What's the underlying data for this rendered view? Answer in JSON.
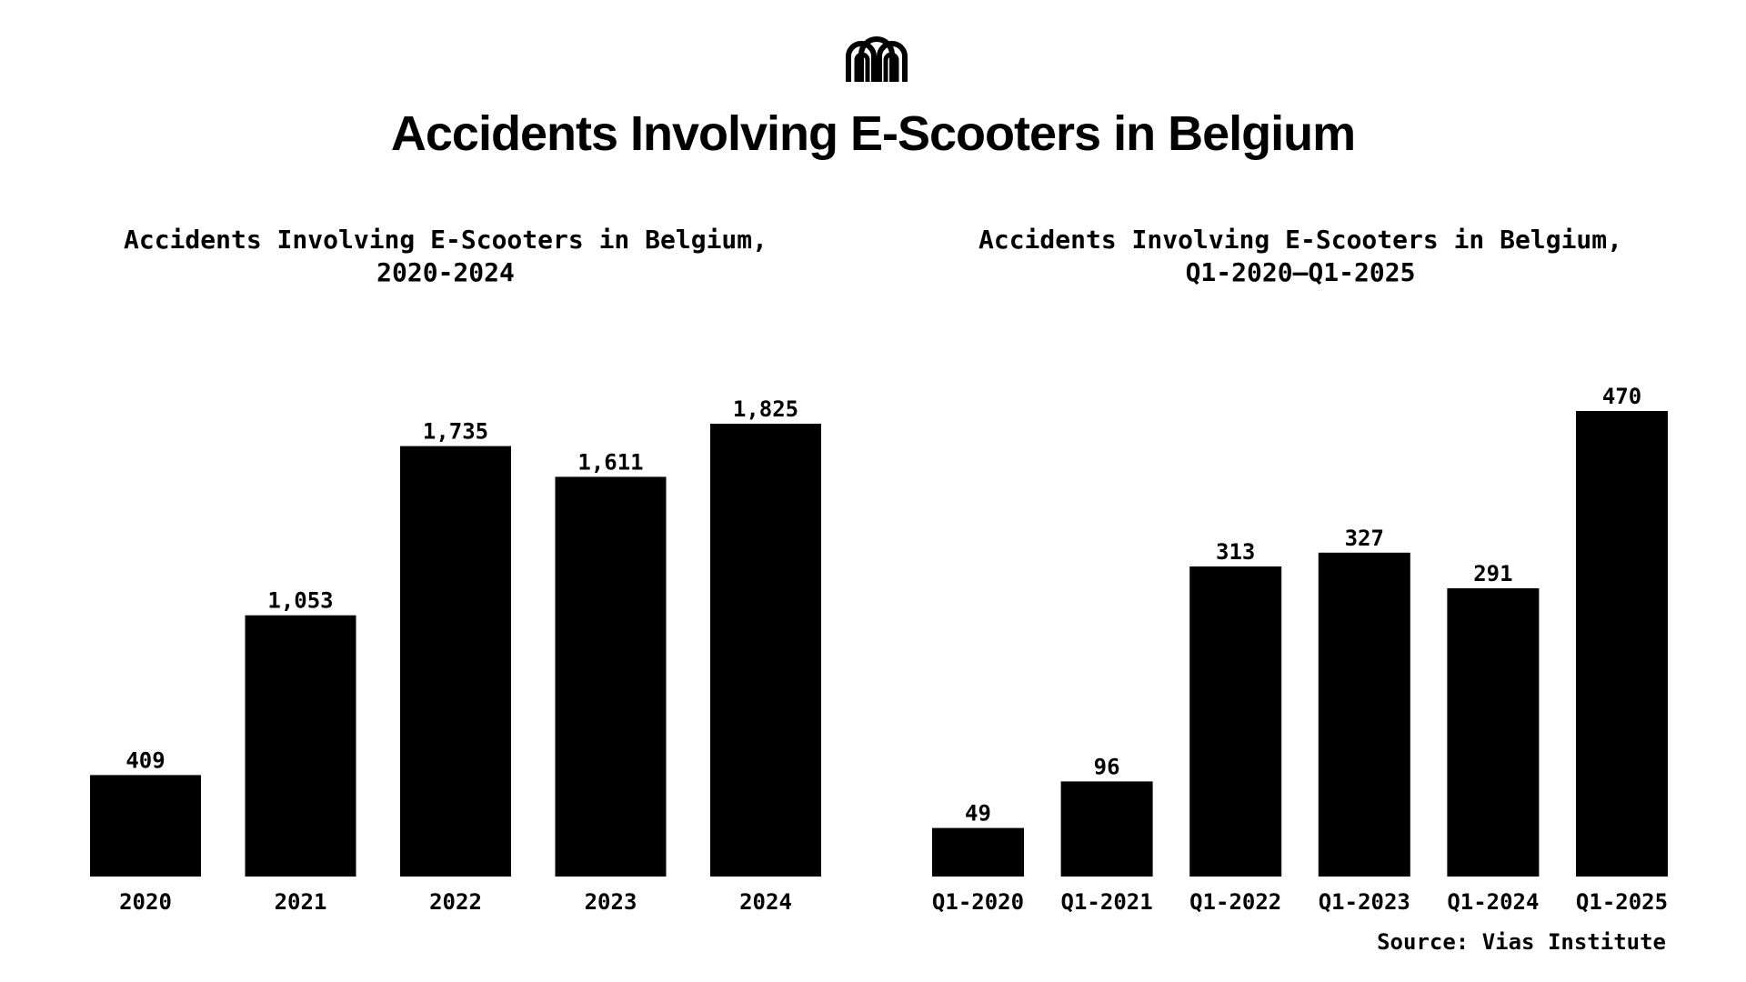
{
  "header": {
    "title": "Accidents Involving E-Scooters in Belgium",
    "logo_icon": "m-arches-logo-icon"
  },
  "chart_data": [
    {
      "type": "bar",
      "title_line1": "Accidents Involving E-Scooters in Belgium,",
      "title_line2": "2020-2024",
      "categories": [
        "2020",
        "2021",
        "2022",
        "2023",
        "2024"
      ],
      "values": [
        409,
        1053,
        1735,
        1611,
        1825
      ],
      "value_labels": [
        "409",
        "1,053",
        "1,735",
        "1,611",
        "1,825"
      ],
      "ylim": [
        0,
        1825
      ],
      "grid": false,
      "color": "#000000"
    },
    {
      "type": "bar",
      "title_line1": "Accidents Involving E-Scooters in Belgium,",
      "title_line2": "Q1-2020–Q1-2025",
      "categories": [
        "Q1-2020",
        "Q1-2021",
        "Q1-2022",
        "Q1-2023",
        "Q1-2024",
        "Q1-2025"
      ],
      "values": [
        49,
        96,
        313,
        327,
        291,
        470
      ],
      "value_labels": [
        "49",
        "96",
        "313",
        "327",
        "291",
        "470"
      ],
      "ylim": [
        0,
        470
      ],
      "grid": false,
      "color": "#000000"
    }
  ],
  "source": "Source: Vias Institute"
}
